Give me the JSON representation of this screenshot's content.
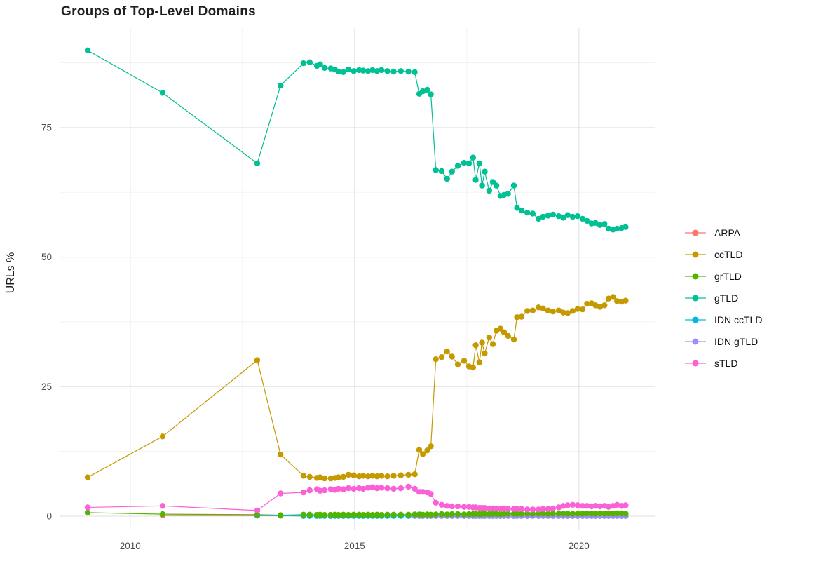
{
  "title": "Groups of Top-Level Domains",
  "legend": {
    "position": "right",
    "items": [
      {
        "label": "ARPA",
        "color": "#F8766D"
      },
      {
        "label": "ccTLD",
        "color": "#C49A00"
      },
      {
        "label": "grTLD",
        "color": "#53B400"
      },
      {
        "label": "gTLD",
        "color": "#00C094"
      },
      {
        "label": "IDN ccTLD",
        "color": "#00B6EB"
      },
      {
        "label": "IDN gTLD",
        "color": "#A58AFF"
      },
      {
        "label": "sTLD",
        "color": "#FB61D7"
      }
    ]
  },
  "chart_data": {
    "type": "line",
    "title": "Groups of Top-Level Domains",
    "xlabel": "",
    "ylabel": "URLs %",
    "xlim": [
      2008.44,
      2021.69
    ],
    "ylim": [
      -2.7,
      94.2
    ],
    "x_ticks": {
      "major": [
        2010,
        2015,
        2020
      ],
      "minor": [
        2012.5,
        2017.5
      ]
    },
    "y_ticks": {
      "major": [
        0,
        25,
        50,
        75
      ],
      "minor": [
        12.5,
        37.5,
        62.5,
        87.5
      ]
    },
    "grid": "major+minor",
    "legend_position": "right",
    "series": [
      {
        "name": "ARPA",
        "color": "#F8766D",
        "x": [
          2010.72,
          2012.83,
          2013.35,
          2013.86
        ],
        "y": [
          0.15,
          0.1,
          0.1,
          0.05
        ]
      },
      {
        "name": "IDN ccTLD",
        "color": "#00B6EB",
        "x": [
          2012.83,
          2013.35,
          2013.86,
          2014.0,
          2014.16,
          2014.23,
          2014.33,
          2014.47,
          2014.56,
          2014.64,
          2014.75,
          2014.86,
          2014.98,
          2015.1,
          2015.19,
          2015.3,
          2015.4,
          2015.5,
          2015.6,
          2015.73,
          2015.87,
          2016.03,
          2016.2,
          2016.34,
          2016.44,
          2016.52,
          2016.62,
          2016.7,
          2016.81,
          2016.94,
          2017.06,
          2017.17,
          2017.3,
          2017.44,
          2017.55,
          2017.64,
          2017.7,
          2017.78,
          2017.84,
          2017.9,
          2018.0,
          2018.08,
          2018.16,
          2018.25,
          2018.33,
          2018.42,
          2018.55,
          2018.62,
          2018.72,
          2018.85,
          2018.97,
          2019.1,
          2019.2,
          2019.31,
          2019.42,
          2019.55,
          2019.65,
          2019.75,
          2019.86,
          2019.97,
          2020.08,
          2020.18,
          2020.28,
          2020.37,
          2020.47,
          2020.57,
          2020.66,
          2020.76,
          2020.85,
          2020.95,
          2021.04
        ],
        "y": [
          0.15,
          0.1,
          0.05,
          0.05,
          0.05,
          0.05,
          0.05,
          0.05,
          0.05,
          0.05,
          0.05,
          0.05,
          0.05,
          0.05,
          0.05,
          0.05,
          0.05,
          0.05,
          0.05,
          0.05,
          0.05,
          0.05,
          0.05,
          0.05,
          0.05,
          0.05,
          0.05,
          0.05,
          0.05,
          0.05,
          0.05,
          0.05,
          0.05,
          0.05,
          0.05,
          0.05,
          0.05,
          0.05,
          0.05,
          0.05,
          0.05,
          0.05,
          0.05,
          0.05,
          0.05,
          0.05,
          0.05,
          0.05,
          0.05,
          0.05,
          0.05,
          0.05,
          0.05,
          0.05,
          0.05,
          0.05,
          0.05,
          0.05,
          0.05,
          0.05,
          0.05,
          0.05,
          0.05,
          0.05,
          0.05,
          0.05,
          0.05,
          0.05,
          0.05,
          0.05,
          0.05
        ]
      },
      {
        "name": "IDN gTLD",
        "color": "#A58AFF",
        "x": [
          2016.34,
          2016.44,
          2016.52,
          2016.62,
          2016.7,
          2016.81,
          2016.94,
          2017.06,
          2017.17,
          2017.3,
          2017.44,
          2017.55,
          2017.64,
          2017.7,
          2017.78,
          2017.84,
          2017.9,
          2018.0,
          2018.08,
          2018.16,
          2018.25,
          2018.33,
          2018.42,
          2018.55,
          2018.62,
          2018.72,
          2018.85,
          2018.97,
          2019.1,
          2019.2,
          2019.31,
          2019.42,
          2019.55,
          2019.65,
          2019.75,
          2019.86,
          2019.97,
          2020.08,
          2020.18,
          2020.28,
          2020.37,
          2020.47,
          2020.57,
          2020.66,
          2020.76,
          2020.85,
          2020.95,
          2021.04
        ],
        "y": [
          0.05,
          0.05,
          0.05,
          0.05,
          0.05,
          0.05,
          0.05,
          0.05,
          0.05,
          0.05,
          0.05,
          0.05,
          0.05,
          0.05,
          0.05,
          0.05,
          0.05,
          0.05,
          0.05,
          0.05,
          0.05,
          0.05,
          0.05,
          0.05,
          0.05,
          0.05,
          0.05,
          0.05,
          0.05,
          0.05,
          0.05,
          0.05,
          0.05,
          0.05,
          0.05,
          0.05,
          0.05,
          0.05,
          0.05,
          0.05,
          0.05,
          0.05,
          0.05,
          0.05,
          0.05,
          0.05,
          0.05,
          0.05
        ]
      },
      {
        "name": "ccTLD",
        "color": "#C49A00",
        "x": [
          2009.05,
          2010.72,
          2012.83,
          2013.35,
          2013.86,
          2014.0,
          2014.16,
          2014.23,
          2014.33,
          2014.47,
          2014.56,
          2014.64,
          2014.75,
          2014.86,
          2014.98,
          2015.1,
          2015.19,
          2015.3,
          2015.4,
          2015.5,
          2015.6,
          2015.73,
          2015.87,
          2016.03,
          2016.2,
          2016.34,
          2016.44,
          2016.52,
          2016.62,
          2016.7,
          2016.81,
          2016.94,
          2017.06,
          2017.17,
          2017.3,
          2017.44,
          2017.55,
          2017.64,
          2017.7,
          2017.78,
          2017.84,
          2017.9,
          2018.0,
          2018.08,
          2018.16,
          2018.25,
          2018.33,
          2018.42,
          2018.55,
          2018.62,
          2018.72,
          2018.85,
          2018.97,
          2019.1,
          2019.2,
          2019.31,
          2019.42,
          2019.55,
          2019.65,
          2019.75,
          2019.86,
          2019.97,
          2020.08,
          2020.18,
          2020.28,
          2020.37,
          2020.47,
          2020.57,
          2020.66,
          2020.76,
          2020.85,
          2020.95,
          2021.04
        ],
        "y": [
          7.5,
          15.4,
          30.1,
          11.9,
          7.8,
          7.6,
          7.4,
          7.5,
          7.3,
          7.3,
          7.4,
          7.5,
          7.6,
          8.0,
          7.9,
          7.7,
          7.8,
          7.7,
          7.8,
          7.7,
          7.8,
          7.7,
          7.8,
          7.9,
          8.0,
          8.1,
          12.8,
          12.0,
          12.7,
          13.5,
          30.3,
          30.7,
          31.8,
          30.8,
          29.3,
          30.0,
          28.9,
          28.7,
          33.0,
          29.7,
          33.5,
          31.4,
          34.5,
          33.2,
          35.8,
          36.2,
          35.5,
          34.8,
          34.1,
          38.4,
          38.5,
          39.6,
          39.7,
          40.3,
          40.1,
          39.7,
          39.5,
          39.7,
          39.3,
          39.2,
          39.6,
          40.0,
          39.9,
          41.0,
          41.1,
          40.7,
          40.4,
          40.7,
          42.0,
          42.3,
          41.5,
          41.4,
          41.6
        ]
      },
      {
        "name": "grTLD",
        "color": "#53B400",
        "x": [
          2009.05,
          2010.72,
          2012.83,
          2013.35,
          2013.86,
          2014.0,
          2014.16,
          2014.23,
          2014.33,
          2014.47,
          2014.56,
          2014.64,
          2014.75,
          2014.86,
          2014.98,
          2015.1,
          2015.19,
          2015.3,
          2015.4,
          2015.5,
          2015.6,
          2015.73,
          2015.87,
          2016.03,
          2016.2,
          2016.34,
          2016.44,
          2016.52,
          2016.62,
          2016.7,
          2016.81,
          2016.94,
          2017.06,
          2017.17,
          2017.3,
          2017.44,
          2017.55,
          2017.64,
          2017.7,
          2017.78,
          2017.84,
          2017.9,
          2018.0,
          2018.08,
          2018.16,
          2018.25,
          2018.33,
          2018.42,
          2018.55,
          2018.62,
          2018.72,
          2018.85,
          2018.97,
          2019.1,
          2019.2,
          2019.31,
          2019.42,
          2019.55,
          2019.65,
          2019.75,
          2019.86,
          2019.97,
          2020.08,
          2020.18,
          2020.28,
          2020.37,
          2020.47,
          2020.57,
          2020.66,
          2020.76,
          2020.85,
          2020.95,
          2021.04
        ],
        "y": [
          0.7,
          0.4,
          0.3,
          0.2,
          0.3,
          0.3,
          0.25,
          0.3,
          0.25,
          0.25,
          0.3,
          0.25,
          0.3,
          0.25,
          0.3,
          0.3,
          0.25,
          0.3,
          0.25,
          0.3,
          0.25,
          0.3,
          0.3,
          0.3,
          0.3,
          0.35,
          0.35,
          0.3,
          0.35,
          0.3,
          0.35,
          0.4,
          0.35,
          0.4,
          0.4,
          0.35,
          0.4,
          0.4,
          0.45,
          0.4,
          0.4,
          0.45,
          0.4,
          0.45,
          0.45,
          0.4,
          0.45,
          0.45,
          0.5,
          0.45,
          0.45,
          0.5,
          0.45,
          0.5,
          0.5,
          0.45,
          0.5,
          0.5,
          0.5,
          0.5,
          0.45,
          0.5,
          0.5,
          0.55,
          0.5,
          0.5,
          0.55,
          0.5,
          0.55,
          0.5,
          0.55,
          0.55,
          0.5
        ]
      },
      {
        "name": "gTLD",
        "color": "#00C094",
        "x": [
          2009.05,
          2010.72,
          2012.83,
          2013.35,
          2013.86,
          2014.0,
          2014.16,
          2014.23,
          2014.33,
          2014.47,
          2014.56,
          2014.64,
          2014.75,
          2014.86,
          2014.98,
          2015.1,
          2015.19,
          2015.3,
          2015.4,
          2015.5,
          2015.6,
          2015.73,
          2015.87,
          2016.03,
          2016.2,
          2016.34,
          2016.44,
          2016.52,
          2016.62,
          2016.7,
          2016.81,
          2016.94,
          2017.06,
          2017.17,
          2017.3,
          2017.44,
          2017.55,
          2017.64,
          2017.7,
          2017.78,
          2017.84,
          2017.9,
          2018.0,
          2018.08,
          2018.16,
          2018.25,
          2018.33,
          2018.42,
          2018.55,
          2018.62,
          2018.72,
          2018.85,
          2018.97,
          2019.1,
          2019.2,
          2019.31,
          2019.42,
          2019.55,
          2019.65,
          2019.75,
          2019.86,
          2019.97,
          2020.08,
          2020.18,
          2020.28,
          2020.37,
          2020.47,
          2020.57,
          2020.66,
          2020.76,
          2020.85,
          2020.95,
          2021.04
        ],
        "y": [
          89.9,
          81.7,
          68.1,
          83.1,
          87.4,
          87.6,
          86.9,
          87.2,
          86.5,
          86.4,
          86.2,
          85.8,
          85.7,
          86.2,
          85.9,
          86.1,
          86.0,
          85.9,
          86.1,
          85.9,
          86.1,
          85.9,
          85.8,
          85.9,
          85.8,
          85.7,
          81.5,
          82.0,
          82.3,
          81.4,
          66.8,
          66.6,
          65.1,
          66.5,
          67.6,
          68.2,
          68.1,
          69.2,
          64.9,
          68.1,
          63.8,
          66.5,
          62.8,
          64.5,
          63.8,
          61.8,
          62.0,
          62.2,
          63.8,
          59.5,
          59.0,
          58.6,
          58.4,
          57.4,
          57.8,
          58.0,
          58.2,
          57.9,
          57.6,
          58.1,
          57.8,
          57.9,
          57.4,
          57.0,
          56.5,
          56.6,
          56.2,
          56.4,
          55.5,
          55.3,
          55.5,
          55.6,
          55.8
        ]
      },
      {
        "name": "sTLD",
        "color": "#FB61D7",
        "x": [
          2009.05,
          2010.72,
          2012.83,
          2013.35,
          2013.86,
          2014.0,
          2014.16,
          2014.23,
          2014.33,
          2014.47,
          2014.56,
          2014.64,
          2014.75,
          2014.86,
          2014.98,
          2015.1,
          2015.19,
          2015.3,
          2015.4,
          2015.5,
          2015.6,
          2015.73,
          2015.87,
          2016.03,
          2016.2,
          2016.34,
          2016.44,
          2016.52,
          2016.62,
          2016.7,
          2016.81,
          2016.94,
          2017.06,
          2017.17,
          2017.3,
          2017.44,
          2017.55,
          2017.64,
          2017.7,
          2017.78,
          2017.84,
          2017.9,
          2018.0,
          2018.08,
          2018.16,
          2018.25,
          2018.33,
          2018.42,
          2018.55,
          2018.62,
          2018.72,
          2018.85,
          2018.97,
          2019.1,
          2019.2,
          2019.31,
          2019.42,
          2019.55,
          2019.65,
          2019.75,
          2019.86,
          2019.97,
          2020.08,
          2020.18,
          2020.28,
          2020.37,
          2020.47,
          2020.57,
          2020.66,
          2020.76,
          2020.85,
          2020.95,
          2021.04
        ],
        "y": [
          1.7,
          2.0,
          1.1,
          4.4,
          4.6,
          5.0,
          5.2,
          4.9,
          5.0,
          5.2,
          5.1,
          5.3,
          5.2,
          5.4,
          5.3,
          5.4,
          5.3,
          5.5,
          5.6,
          5.4,
          5.5,
          5.4,
          5.3,
          5.4,
          5.7,
          5.3,
          4.7,
          4.7,
          4.6,
          4.3,
          2.6,
          2.2,
          2.0,
          1.9,
          1.9,
          1.8,
          1.8,
          1.7,
          1.7,
          1.6,
          1.6,
          1.6,
          1.5,
          1.5,
          1.5,
          1.4,
          1.5,
          1.4,
          1.4,
          1.4,
          1.4,
          1.3,
          1.3,
          1.3,
          1.4,
          1.4,
          1.5,
          1.7,
          2.0,
          2.1,
          2.2,
          2.1,
          2.0,
          2.0,
          1.9,
          2.0,
          1.9,
          2.0,
          1.8,
          2.0,
          2.2,
          2.0,
          2.1
        ]
      }
    ]
  }
}
